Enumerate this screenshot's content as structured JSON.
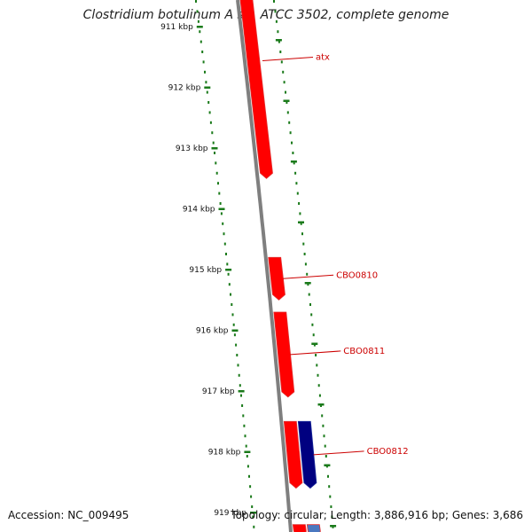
{
  "title": "Clostridium botulinum A str. ATCC 3502, complete genome",
  "accession_text": "Accession: NC_009495",
  "summary_text": "Topology: circular; Length: 3,886,916 bp; Genes: 3,686",
  "ticks": [
    {
      "label": "911 kbp",
      "kbp": 911
    },
    {
      "label": "912 kbp",
      "kbp": 912
    },
    {
      "label": "913 kbp",
      "kbp": 913
    },
    {
      "label": "914 kbp",
      "kbp": 914
    },
    {
      "label": "915 kbp",
      "kbp": 915
    },
    {
      "label": "916 kbp",
      "kbp": 916
    },
    {
      "label": "917 kbp",
      "kbp": 917
    },
    {
      "label": "918 kbp",
      "kbp": 918
    },
    {
      "label": "919 kbp",
      "kbp": 919
    }
  ],
  "genes": [
    {
      "name": "atx",
      "strand": "forward",
      "start_kbp": 910.5,
      "end_kbp": 913.5,
      "color": "#ff0000"
    },
    {
      "name": "CBO0810",
      "strand": "forward",
      "start_kbp": 914.8,
      "end_kbp": 915.5,
      "color": "#ff0000"
    },
    {
      "name": "CBO0811",
      "strand": "forward",
      "start_kbp": 915.7,
      "end_kbp": 917.1,
      "color": "#ff0000"
    },
    {
      "name": "",
      "strand": "forward",
      "start_kbp": 917.5,
      "end_kbp": 918.6,
      "color": "#ff0000"
    },
    {
      "name": "CBO0812",
      "strand": "forward",
      "start_kbp": 917.5,
      "end_kbp": 918.6,
      "color": "#000080"
    },
    {
      "name": "",
      "strand": "forward",
      "start_kbp": 919.2,
      "end_kbp": 919.4,
      "color": "#ff0000"
    },
    {
      "name": "",
      "strand": "forward",
      "start_kbp": 919.2,
      "end_kbp": 919.4,
      "color": "#4a78c0"
    }
  ],
  "colors": {
    "backbone": "#7f7f7f",
    "tick_marks": "#1a7a1a",
    "forward_gene": "#ff0000",
    "other_gene": "#000080",
    "gene_label": "#cc0000"
  }
}
